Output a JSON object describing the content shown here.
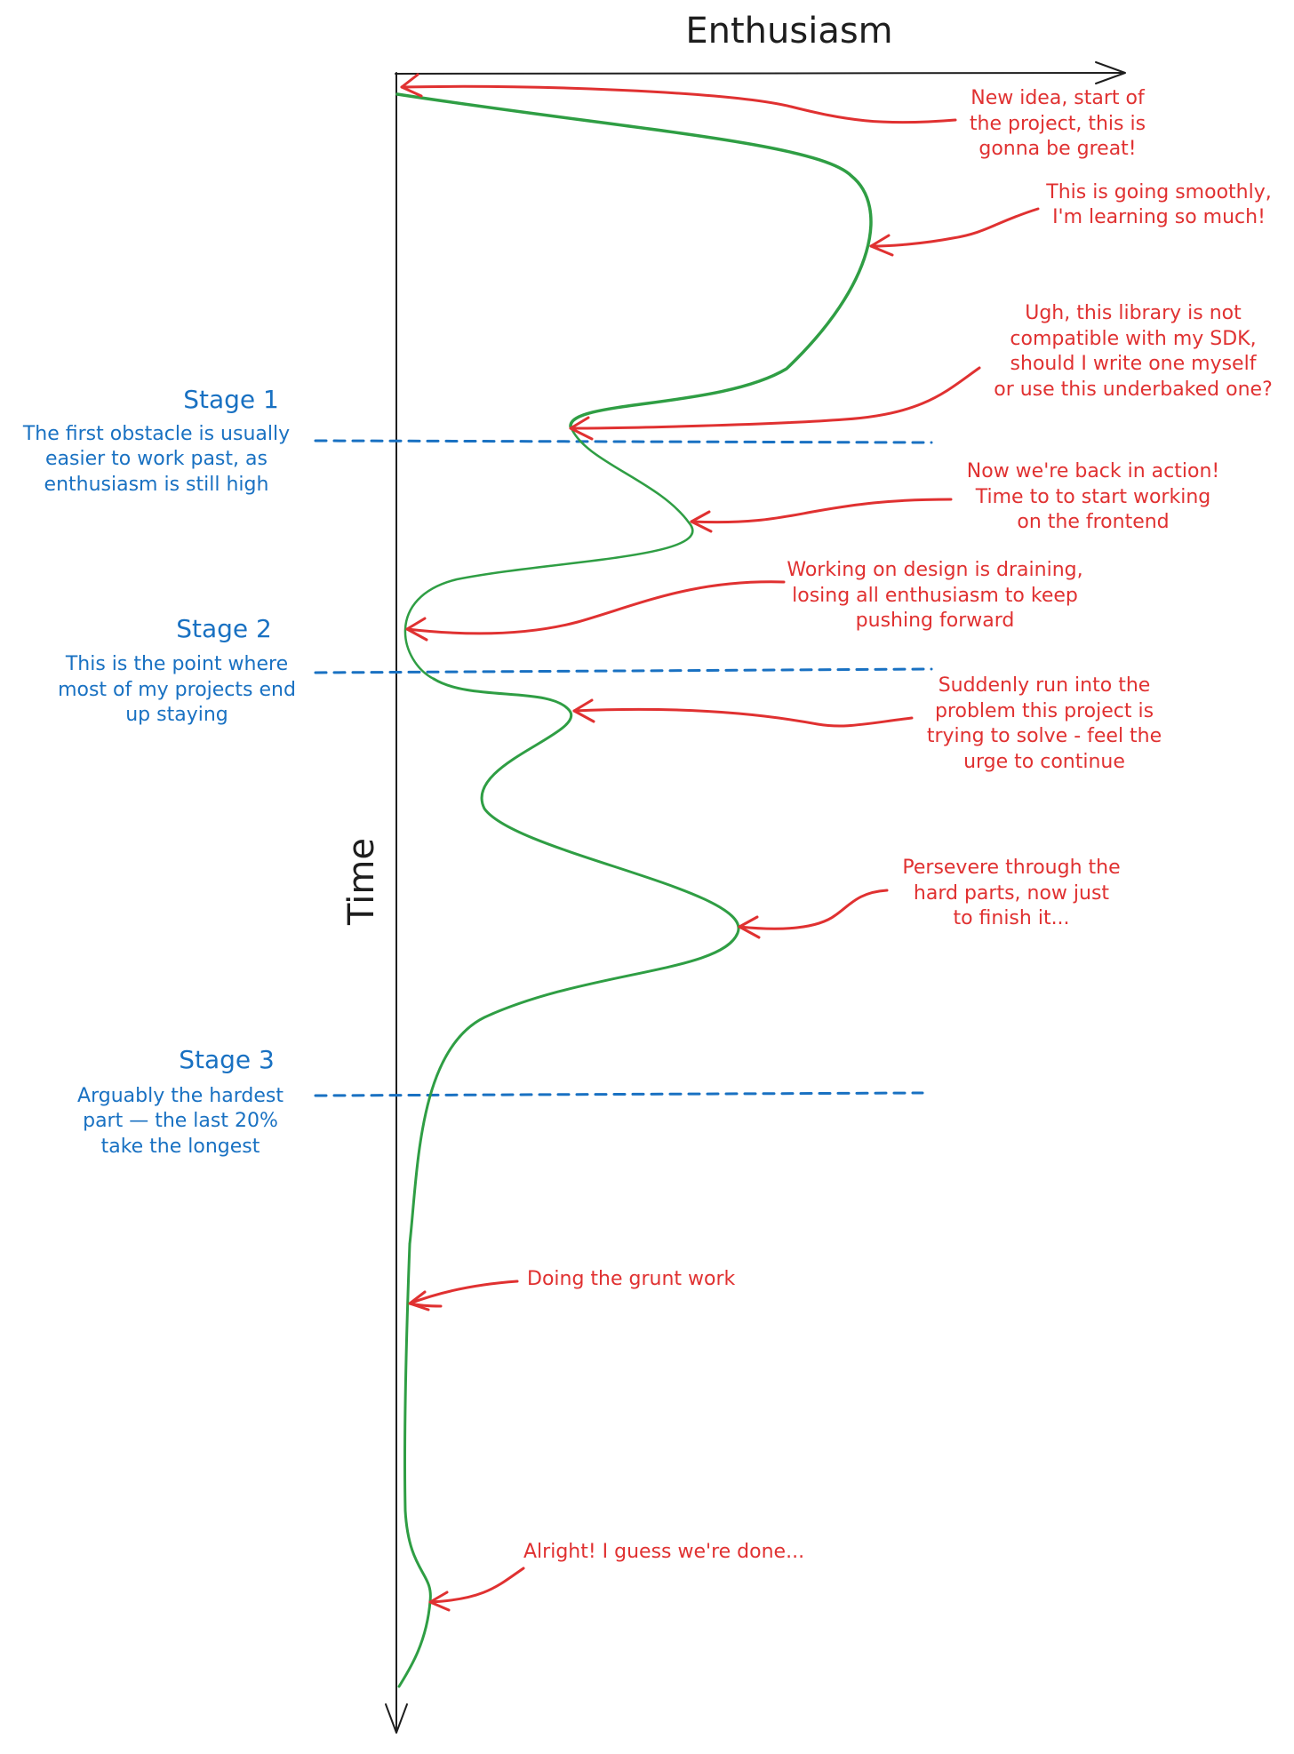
{
  "colors": {
    "axis": "#1e1e1e",
    "curve": "#2f9e44",
    "stage": "#1971c2",
    "note": "#e03131"
  },
  "axes": {
    "x_label": "Enthusiasm",
    "y_label": "Time"
  },
  "stages": [
    {
      "title": "Stage 1",
      "description": [
        "The first obstacle is usually",
        "easier to work past, as",
        "enthusiasm is still high"
      ]
    },
    {
      "title": "Stage 2",
      "description": [
        "This is the point where",
        "most of my projects end",
        "up staying"
      ]
    },
    {
      "title": "Stage 3",
      "description": [
        "Arguably the hardest",
        "part — the last 20%",
        "take the longest"
      ]
    }
  ],
  "annotations": [
    {
      "lines": [
        "New idea, start of",
        "the project, this is",
        "gonna be great!"
      ]
    },
    {
      "lines": [
        "This is going smoothly,",
        "I'm learning so much!"
      ]
    },
    {
      "lines": [
        "Ugh, this library is not",
        "compatible with my SDK,",
        "should I write one myself",
        "or use this underbaked one?"
      ]
    },
    {
      "lines": [
        "Now we're back in action!",
        "Time to to start working",
        "on the frontend"
      ]
    },
    {
      "lines": [
        "Working on design is draining,",
        "losing all enthusiasm to keep",
        "pushing forward"
      ]
    },
    {
      "lines": [
        "Suddenly run into the",
        "problem this project is",
        "trying to solve - feel the",
        "urge to continue"
      ]
    },
    {
      "lines": [
        "Persevere through the",
        "hard parts, now just",
        "to finish it..."
      ]
    },
    {
      "lines": [
        "Doing the grunt work"
      ]
    },
    {
      "lines": [
        "Alright! I guess we're done..."
      ]
    }
  ]
}
